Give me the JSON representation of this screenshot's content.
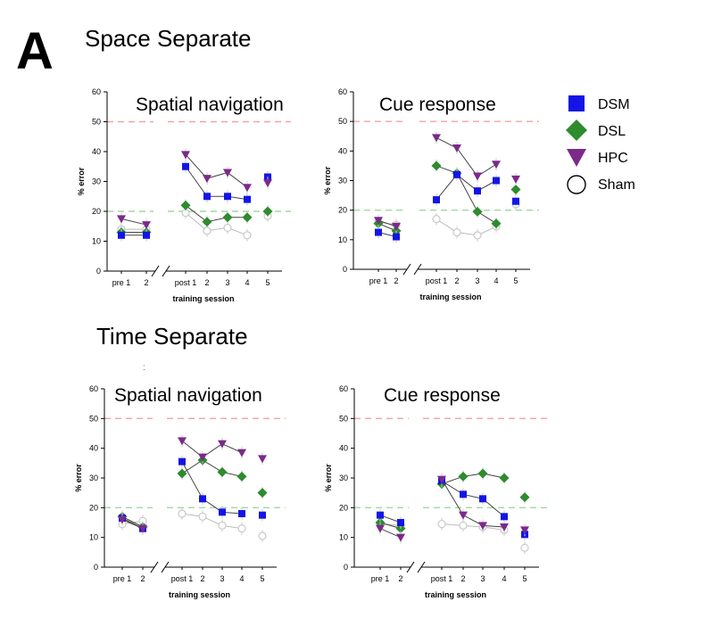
{
  "panel_label": "A",
  "sections": {
    "space": "Space Separate",
    "time": "Time Separate"
  },
  "stray_mark": ":",
  "legend": [
    {
      "name": "DSM",
      "shape": "square",
      "color": "#1414e6"
    },
    {
      "name": "DSL",
      "shape": "diamond",
      "color": "#2e8b2e"
    },
    {
      "name": "HPC",
      "shape": "triangle-down",
      "color": "#7b2a8a"
    },
    {
      "name": "Sham",
      "shape": "circle",
      "color": "#ffffff"
    }
  ],
  "chart_data": [
    {
      "type": "line",
      "title": "Spatial navigation",
      "section": "Space Separate",
      "xlabel": "training session",
      "ylabel": "% error",
      "ylim": [
        0,
        60
      ],
      "yticks": [
        0,
        10,
        20,
        30,
        40,
        50,
        60
      ],
      "categories": [
        "pre 1",
        "2",
        "post 1",
        "2",
        "3",
        "4",
        "5"
      ],
      "reference_lines": [
        50,
        20
      ],
      "series": [
        {
          "name": "DSM",
          "values": [
            12,
            12,
            35,
            25,
            25,
            24,
            31.5
          ]
        },
        {
          "name": "DSL",
          "values": [
            13,
            13,
            22,
            16.5,
            18,
            18,
            20
          ]
        },
        {
          "name": "HPC",
          "values": [
            17.5,
            15.5,
            39,
            31,
            33,
            28,
            29.5
          ]
        },
        {
          "name": "Sham",
          "values": [
            14,
            14,
            19.5,
            13.5,
            14.5,
            12,
            18.5
          ]
        }
      ]
    },
    {
      "type": "line",
      "title": "Cue response",
      "section": "Space Separate",
      "xlabel": "training session",
      "ylabel": "% error",
      "ylim": [
        0,
        60
      ],
      "yticks": [
        0,
        10,
        20,
        30,
        40,
        50,
        60
      ],
      "categories": [
        "pre 1",
        "2",
        "post 1",
        "2",
        "3",
        "4",
        "5"
      ],
      "reference_lines": [
        50,
        20
      ],
      "series": [
        {
          "name": "DSM",
          "values": [
            12.5,
            11,
            23.5,
            32,
            26.5,
            30,
            23
          ]
        },
        {
          "name": "DSL",
          "values": [
            15.5,
            13,
            35,
            32.5,
            19.5,
            15.5,
            27
          ]
        },
        {
          "name": "HPC",
          "values": [
            16.5,
            14.5,
            44.5,
            41,
            31.5,
            35.5,
            30.5
          ]
        },
        {
          "name": "Sham",
          "values": [
            16,
            15,
            17,
            12.5,
            11.5,
            14.5,
            22
          ]
        }
      ]
    },
    {
      "type": "line",
      "title": "Spatial navigation",
      "section": "Time Separate",
      "xlabel": "training session",
      "ylabel": "% error",
      "ylim": [
        0,
        60
      ],
      "yticks": [
        0,
        10,
        20,
        30,
        40,
        50,
        60
      ],
      "categories": [
        "pre 1",
        "2",
        "post 1",
        "2",
        "3",
        "4",
        "5"
      ],
      "reference_lines": [
        50,
        20
      ],
      "series": [
        {
          "name": "DSM",
          "values": [
            16.5,
            13,
            35.5,
            23,
            18.5,
            18,
            17.5
          ]
        },
        {
          "name": "DSL",
          "values": [
            17,
            13.5,
            31.5,
            36,
            32,
            30.5,
            25
          ]
        },
        {
          "name": "HPC",
          "values": [
            16,
            13,
            42.5,
            37,
            41.5,
            38.5,
            36.5
          ]
        },
        {
          "name": "Sham",
          "values": [
            14.5,
            15.5,
            18,
            17,
            14,
            13,
            10.5
          ]
        }
      ]
    },
    {
      "type": "line",
      "title": "Cue response",
      "section": "Time Separate",
      "xlabel": "training session",
      "ylabel": "% error",
      "ylim": [
        0,
        60
      ],
      "yticks": [
        0,
        10,
        20,
        30,
        40,
        50,
        60
      ],
      "categories": [
        "pre 1",
        "2",
        "post 1",
        "2",
        "3",
        "4",
        "5"
      ],
      "reference_lines": [
        50,
        20
      ],
      "series": [
        {
          "name": "DSM",
          "values": [
            17.5,
            15,
            29,
            24.5,
            23,
            17,
            11
          ]
        },
        {
          "name": "DSL",
          "values": [
            15,
            13,
            28,
            30.5,
            31.5,
            30,
            23.5
          ]
        },
        {
          "name": "HPC",
          "values": [
            13,
            10,
            29.5,
            17.5,
            14,
            13.5,
            12.5
          ]
        },
        {
          "name": "Sham",
          "values": [
            14.5,
            14,
            14.5,
            14,
            13.5,
            12.5,
            6.5
          ]
        }
      ]
    }
  ]
}
